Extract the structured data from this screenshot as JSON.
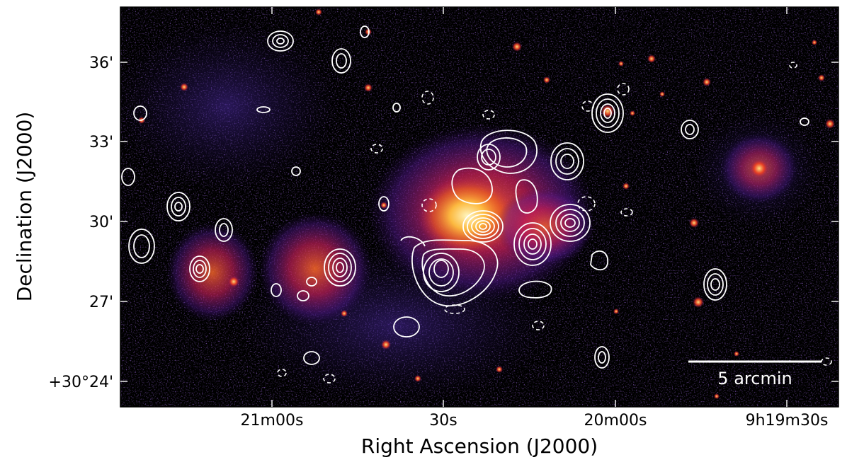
{
  "figure": {
    "image_kind": "X-ray image with radio contours overlay",
    "xlabel": "Right Ascension (J2000)",
    "ylabel": "Declination (J2000)",
    "x_ticks": [
      "21m00s",
      "30s",
      "20m00s",
      "9h19m30s"
    ],
    "y_ticks": [
      "36'",
      "33'",
      "30'",
      "27'",
      "+30°24'"
    ],
    "scale_bar_label": "5 arcmin",
    "colors": {
      "background": "#000000",
      "diffuse_purple": "#3a1a8a",
      "emission_red": "#e0303a",
      "emission_orange": "#f07a1c",
      "emission_core": "#fff2a8",
      "contour": "#ffffff",
      "frame": "#000000"
    }
  }
}
